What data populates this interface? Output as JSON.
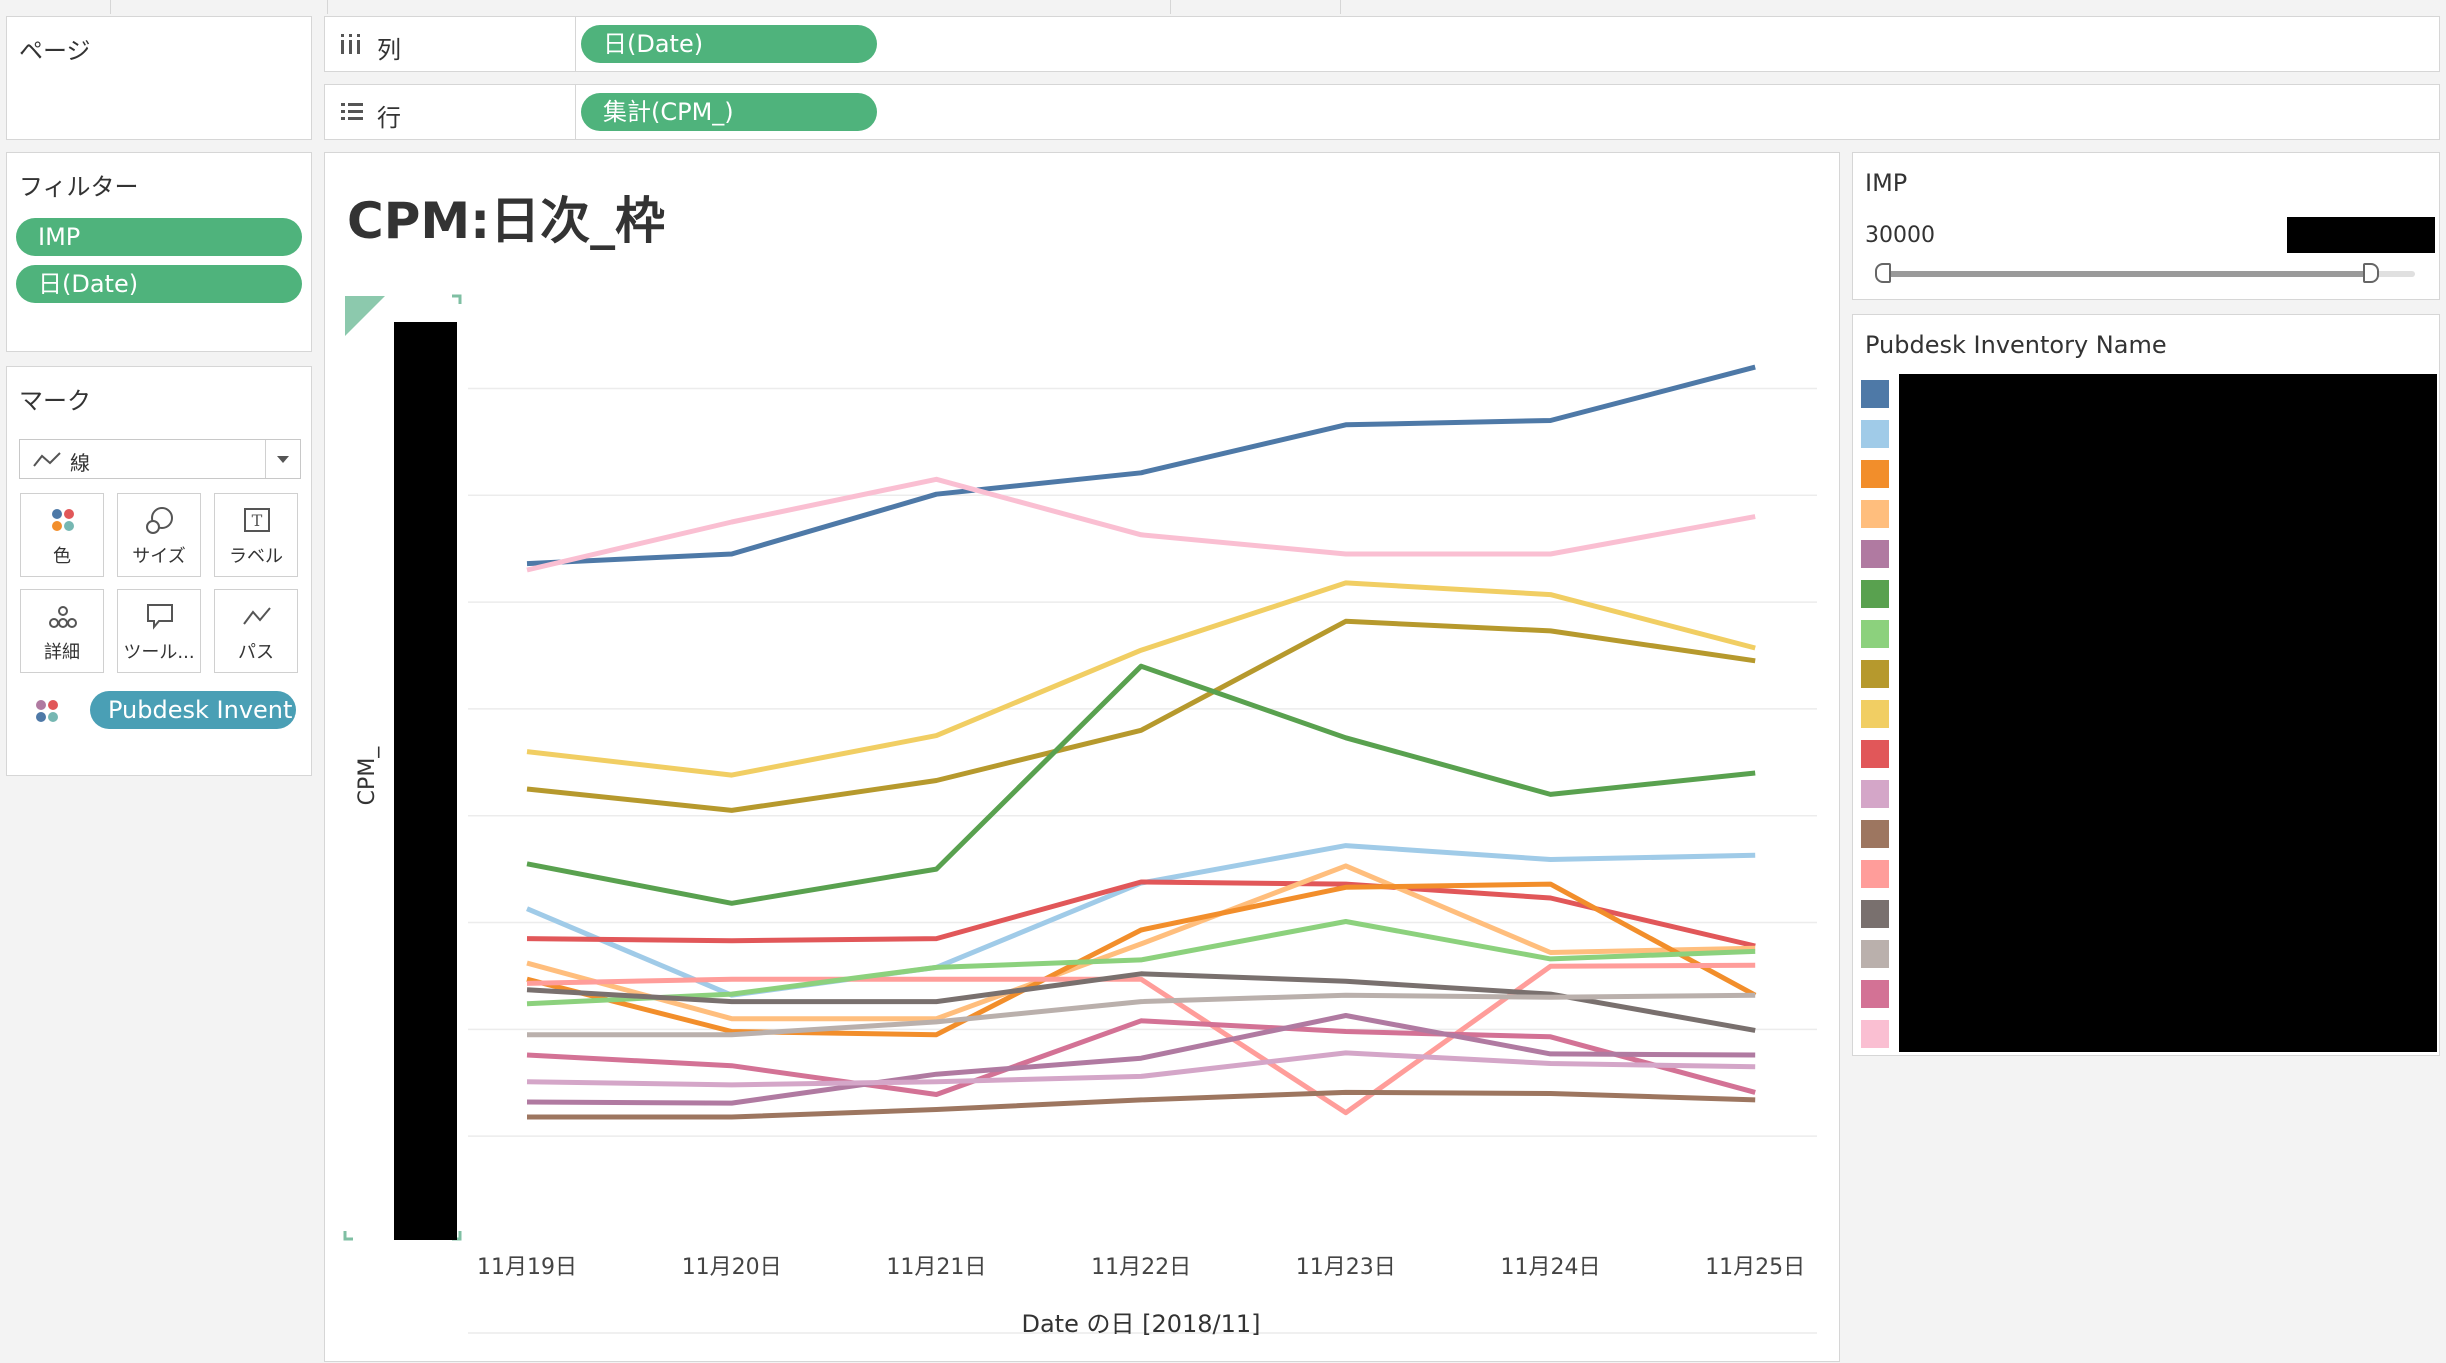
{
  "sidebar": {
    "pages": {
      "title": "ページ"
    },
    "filters": {
      "title": "フィルター",
      "items": [
        "IMP",
        "日(Date)"
      ]
    },
    "marks": {
      "title": "マーク",
      "mark_type": "線",
      "cards": [
        {
          "label": "色",
          "icon": "color-dots-icon"
        },
        {
          "label": "サイズ",
          "icon": "size-circles-icon"
        },
        {
          "label": "ラベル",
          "icon": "text-label-icon"
        },
        {
          "label": "詳細",
          "icon": "detail-dots-icon"
        },
        {
          "label": "ツール...",
          "icon": "tooltip-icon"
        },
        {
          "label": "パス",
          "icon": "path-line-icon"
        }
      ],
      "color_field": "Pubdesk Invent.."
    }
  },
  "shelves": {
    "columns": {
      "label": "列",
      "pill": "日(Date)"
    },
    "rows": {
      "label": "行",
      "pill": "集計(CPM_)"
    }
  },
  "worksheet": {
    "title": "CPM:日次_枠"
  },
  "imp_filter": {
    "title": "IMP",
    "min_value": "30000"
  },
  "legend": {
    "title": "Pubdesk Inventory Name",
    "colors": [
      "#4e79a7",
      "#a0cbe8",
      "#f28e2b",
      "#ffbe7d",
      "#b07aa1",
      "#59a14f",
      "#8cd17d",
      "#b6992d",
      "#f1ce63",
      "#e15759",
      "#d4a6c8",
      "#9d7660",
      "#ff9d9a",
      "#79706e",
      "#bab0ac",
      "#d37295",
      "#fabfd2"
    ]
  },
  "chart_data": {
    "type": "line",
    "xlabel": "Date の日 [2018/11]",
    "ylabel": "CPM_",
    "categories": [
      "11月19日",
      "11月20日",
      "11月21日",
      "11月22日",
      "11月23日",
      "11月24日",
      "11月25日"
    ],
    "y_axis_tick_labels_redacted": true,
    "grid": true,
    "legend": "right",
    "series": [
      {
        "color": "#4e79a7",
        "values": [
          63.6,
          64.5,
          70.1,
          72.1,
          76.6,
          77.0,
          82.0
        ]
      },
      {
        "color": "#fabfd2",
        "values": [
          63.0,
          67.5,
          71.5,
          66.3,
          64.5,
          64.5,
          68.0
        ]
      },
      {
        "color": "#f1ce63",
        "values": [
          46.0,
          43.8,
          47.5,
          55.5,
          61.8,
          60.7,
          55.7
        ]
      },
      {
        "color": "#b6992d",
        "values": [
          42.5,
          40.5,
          43.3,
          48.0,
          58.2,
          57.3,
          54.5
        ]
      },
      {
        "color": "#59a14f",
        "values": [
          35.5,
          31.8,
          35.0,
          54.0,
          47.3,
          42.0,
          44.0
        ]
      },
      {
        "color": "#a0cbe8",
        "values": [
          31.3,
          23.2,
          25.8,
          33.7,
          37.2,
          35.9,
          36.3
        ]
      },
      {
        "color": "#e15759",
        "values": [
          28.5,
          28.3,
          28.5,
          33.8,
          33.6,
          32.3,
          27.8
        ]
      },
      {
        "color": "#ffbe7d",
        "values": [
          26.2,
          21.0,
          21.0,
          28.0,
          35.3,
          27.2,
          27.6
        ]
      },
      {
        "color": "#f28e2b",
        "values": [
          24.7,
          19.8,
          19.5,
          29.3,
          33.3,
          33.6,
          23.2
        ]
      },
      {
        "color": "#ff9d9a",
        "values": [
          24.3,
          24.7,
          24.7,
          24.7,
          12.2,
          25.9,
          26.0
        ]
      },
      {
        "color": "#8cd17d",
        "values": [
          22.4,
          23.3,
          25.8,
          26.5,
          30.1,
          26.6,
          27.3
        ]
      },
      {
        "color": "#79706e",
        "values": [
          23.7,
          22.6,
          22.6,
          25.2,
          24.5,
          23.3,
          19.9
        ]
      },
      {
        "color": "#bab0ac",
        "values": [
          19.5,
          19.5,
          20.7,
          22.6,
          23.2,
          23.0,
          23.2
        ]
      },
      {
        "color": "#d37295",
        "values": [
          17.6,
          16.6,
          13.9,
          20.8,
          19.8,
          19.3,
          14.1
        ]
      },
      {
        "color": "#b07aa1",
        "values": [
          13.2,
          13.1,
          15.8,
          17.3,
          21.3,
          17.7,
          17.6
        ]
      },
      {
        "color": "#d4a6c8",
        "values": [
          15.1,
          14.8,
          15.1,
          15.6,
          17.8,
          16.8,
          16.5
        ]
      },
      {
        "color": "#9d7660",
        "values": [
          11.8,
          11.8,
          12.5,
          13.4,
          14.1,
          14.0,
          13.4
        ]
      }
    ]
  }
}
